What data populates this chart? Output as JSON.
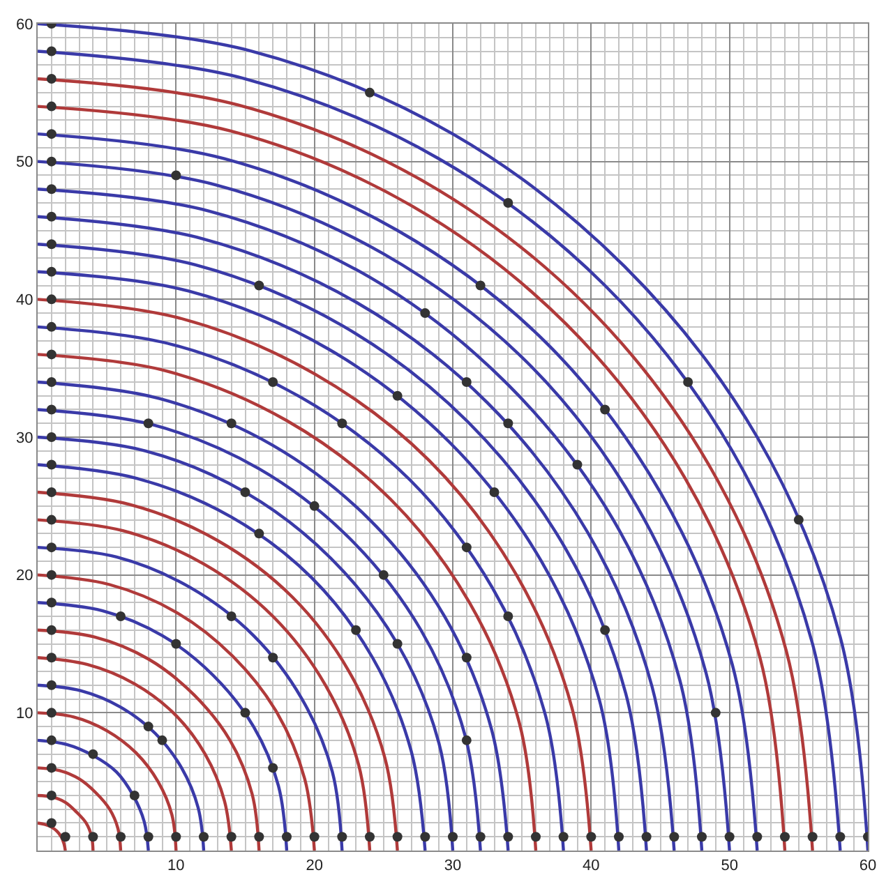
{
  "chart_data": {
    "type": "line",
    "xlim": [
      0,
      60
    ],
    "ylim": [
      0,
      60
    ],
    "xticks": [
      10,
      20,
      30,
      40,
      50,
      60
    ],
    "yticks": [
      10,
      20,
      30,
      40,
      50,
      60
    ],
    "grid": true,
    "marker": "none",
    "series": [
      {
        "color": "#b03a3a",
        "x": [
          0,
          0.5,
          1,
          1.4,
          1.7,
          1.9,
          2
        ],
        "values": [
          2,
          1.9,
          1.7,
          1.4,
          1,
          0.5,
          0
        ]
      },
      {
        "color": "#b03a3a",
        "x": [
          0,
          1,
          2,
          2.8,
          3.5,
          3.9,
          4
        ],
        "values": [
          4,
          3.9,
          3.5,
          2.8,
          2,
          1,
          0
        ]
      },
      {
        "color": "#b03a3a",
        "x": [
          0,
          1.6,
          3,
          4.2,
          5.2,
          5.8,
          6
        ],
        "values": [
          6,
          5.8,
          5.2,
          4.2,
          3,
          1.6,
          0
        ]
      },
      {
        "color": "#3a3aa8",
        "x": [
          0,
          2.1,
          4,
          5.7,
          6.9,
          7.7,
          8
        ],
        "values": [
          8,
          7.7,
          6.9,
          5.7,
          4,
          2.1,
          0
        ]
      },
      {
        "color": "#b03a3a",
        "x": [
          0,
          2.6,
          5,
          7.1,
          8.7,
          9.7,
          10
        ],
        "values": [
          10,
          9.7,
          8.7,
          7.1,
          5,
          2.6,
          0
        ]
      },
      {
        "color": "#3a3aa8",
        "x": [
          0,
          3.1,
          6,
          8.5,
          10.4,
          11.6,
          12
        ],
        "values": [
          12,
          11.6,
          10.4,
          8.5,
          6,
          3.1,
          0
        ]
      },
      {
        "color": "#b03a3a",
        "x": [
          0,
          3.6,
          7,
          9.9,
          12.1,
          13.5,
          14
        ],
        "values": [
          14,
          13.5,
          12.1,
          9.9,
          7,
          3.6,
          0
        ]
      },
      {
        "color": "#b03a3a",
        "x": [
          0,
          4.1,
          8,
          11.3,
          13.9,
          15.5,
          16
        ],
        "values": [
          16,
          15.5,
          13.9,
          11.3,
          8,
          4.1,
          0
        ]
      },
      {
        "color": "#3a3aa8",
        "x": [
          0,
          4.7,
          9,
          12.7,
          15.6,
          17.4,
          18
        ],
        "values": [
          18,
          17.4,
          15.6,
          12.7,
          9,
          4.7,
          0
        ]
      },
      {
        "color": "#b03a3a",
        "x": [
          0,
          5.2,
          10,
          14.1,
          17.3,
          19.3,
          20
        ],
        "values": [
          20,
          19.3,
          17.3,
          14.1,
          10,
          5.2,
          0
        ]
      },
      {
        "color": "#3a3aa8",
        "x": [
          0,
          5.7,
          11,
          15.6,
          19.1,
          21.3,
          22
        ],
        "values": [
          22,
          21.3,
          19.1,
          15.6,
          11,
          5.7,
          0
        ]
      },
      {
        "color": "#b03a3a",
        "x": [
          0,
          6.2,
          12,
          17,
          20.8,
          23.2,
          24
        ],
        "values": [
          24,
          23.2,
          20.8,
          17,
          12,
          6.2,
          0
        ]
      },
      {
        "color": "#b03a3a",
        "x": [
          0,
          6.7,
          13,
          18.4,
          22.5,
          25.1,
          26
        ],
        "values": [
          26,
          25.1,
          22.5,
          18.4,
          13,
          6.7,
          0
        ]
      },
      {
        "color": "#3a3aa8",
        "x": [
          0,
          7.2,
          14,
          19.8,
          24.2,
          27,
          28
        ],
        "values": [
          28,
          27,
          24.2,
          19.8,
          14,
          7.2,
          0
        ]
      },
      {
        "color": "#3a3aa8",
        "x": [
          0,
          7.8,
          15,
          21.2,
          26,
          29,
          30
        ],
        "values": [
          30,
          29,
          26,
          21.2,
          15,
          7.8,
          0
        ]
      },
      {
        "color": "#3a3aa8",
        "x": [
          0,
          8.3,
          16,
          22.6,
          27.7,
          30.9,
          32
        ],
        "values": [
          32,
          30.9,
          27.7,
          22.6,
          16,
          8.3,
          0
        ]
      },
      {
        "color": "#3a3aa8",
        "x": [
          0,
          8.8,
          17,
          24,
          29.4,
          32.8,
          34
        ],
        "values": [
          34,
          32.8,
          29.4,
          24,
          17,
          8.8,
          0
        ]
      },
      {
        "color": "#b03a3a",
        "x": [
          0,
          9.3,
          18,
          25.5,
          31.2,
          34.8,
          36
        ],
        "values": [
          36,
          34.8,
          31.2,
          25.5,
          18,
          9.3,
          0
        ]
      },
      {
        "color": "#3a3aa8",
        "x": [
          0,
          9.8,
          19,
          26.9,
          32.9,
          36.7,
          38
        ],
        "values": [
          38,
          36.7,
          32.9,
          26.9,
          19,
          9.8,
          0
        ]
      },
      {
        "color": "#b03a3a",
        "x": [
          0,
          10.4,
          20,
          28.3,
          34.6,
          38.6,
          40
        ],
        "values": [
          40,
          38.6,
          34.6,
          28.3,
          20,
          10.4,
          0
        ]
      },
      {
        "color": "#3a3aa8",
        "x": [
          0,
          10.9,
          21,
          29.7,
          36.4,
          40.6,
          42
        ],
        "values": [
          42,
          40.6,
          36.4,
          29.7,
          21,
          10.9,
          0
        ]
      },
      {
        "color": "#3a3aa8",
        "x": [
          0,
          11.4,
          22,
          31.1,
          38.1,
          42.5,
          44
        ],
        "values": [
          44,
          42.5,
          38.1,
          31.1,
          22,
          11.4,
          0
        ]
      },
      {
        "color": "#3a3aa8",
        "x": [
          0,
          11.9,
          23,
          32.5,
          39.8,
          44.4,
          46
        ],
        "values": [
          46,
          44.4,
          39.8,
          32.5,
          23,
          11.9,
          0
        ]
      },
      {
        "color": "#3a3aa8",
        "x": [
          0,
          12.4,
          24,
          33.9,
          41.6,
          46.4,
          48
        ],
        "values": [
          48,
          46.4,
          41.6,
          33.9,
          24,
          12.4,
          0
        ]
      },
      {
        "color": "#3a3aa8",
        "x": [
          0,
          12.9,
          25,
          35.4,
          43.3,
          48.3,
          50
        ],
        "values": [
          50,
          48.3,
          43.3,
          35.4,
          25,
          12.9,
          0
        ]
      },
      {
        "color": "#3a3aa8",
        "x": [
          0,
          13.5,
          26,
          36.8,
          45,
          50.2,
          52
        ],
        "values": [
          52,
          50.2,
          45,
          36.8,
          26,
          13.5,
          0
        ]
      },
      {
        "color": "#b03a3a",
        "x": [
          0,
          14,
          27,
          38.2,
          46.8,
          52.2,
          54
        ],
        "values": [
          54,
          52.2,
          46.8,
          38.2,
          27,
          14,
          0
        ]
      },
      {
        "color": "#b03a3a",
        "x": [
          0,
          14.5,
          28,
          39.6,
          48.5,
          54.1,
          56
        ],
        "values": [
          56,
          54.1,
          48.5,
          39.6,
          28,
          14.5,
          0
        ]
      },
      {
        "color": "#3a3aa8",
        "x": [
          0,
          15,
          29,
          41,
          50.2,
          56,
          58
        ],
        "values": [
          58,
          56,
          50.2,
          41,
          29,
          15,
          0
        ]
      },
      {
        "color": "#3a3aa8",
        "x": [
          0,
          15.5,
          30,
          42.4,
          52,
          58,
          60
        ],
        "values": [
          60,
          58,
          52,
          42.4,
          30,
          15.5,
          0
        ]
      },
      {
        "type": "scatter",
        "marker": "circle",
        "color": "#333333",
        "x": [
          1,
          1,
          1,
          1,
          1,
          1,
          1,
          1,
          1,
          1,
          1,
          1,
          1,
          1,
          1,
          1,
          1,
          1,
          1,
          1,
          1,
          1,
          1,
          1,
          1,
          1,
          1,
          1,
          1,
          1,
          2,
          4,
          6,
          8,
          10,
          12,
          14,
          16,
          18,
          20,
          22,
          24,
          26,
          28,
          30,
          32,
          34,
          36,
          38,
          40,
          42,
          44,
          46,
          48,
          50,
          52,
          54,
          56,
          58,
          60,
          24,
          55,
          10,
          49,
          16,
          41,
          28,
          39,
          17,
          34,
          26,
          33,
          8,
          31,
          14,
          31,
          22,
          31,
          34,
          47,
          32,
          41,
          31,
          34,
          15,
          26,
          20,
          25,
          16,
          23,
          6,
          17,
          14,
          17,
          10,
          15,
          8,
          9,
          4,
          7
        ],
        "values": [
          2,
          4,
          6,
          8,
          10,
          12,
          14,
          16,
          18,
          20,
          22,
          24,
          26,
          28,
          30,
          32,
          34,
          36,
          38,
          40,
          42,
          44,
          46,
          48,
          50,
          52,
          54,
          56,
          58,
          60,
          1,
          1,
          1,
          1,
          1,
          1,
          1,
          1,
          1,
          1,
          1,
          1,
          1,
          1,
          1,
          1,
          1,
          1,
          1,
          1,
          1,
          1,
          1,
          1,
          1,
          1,
          1,
          1,
          1,
          1,
          55,
          24,
          49,
          10,
          41,
          16,
          39,
          28,
          34,
          17,
          33,
          26,
          31,
          8,
          31,
          14,
          31,
          22,
          47,
          34,
          41,
          32,
          34,
          31,
          26,
          15,
          25,
          20,
          23,
          16,
          17,
          6,
          17,
          14,
          15,
          10,
          9,
          8,
          7,
          4
        ]
      }
    ]
  }
}
